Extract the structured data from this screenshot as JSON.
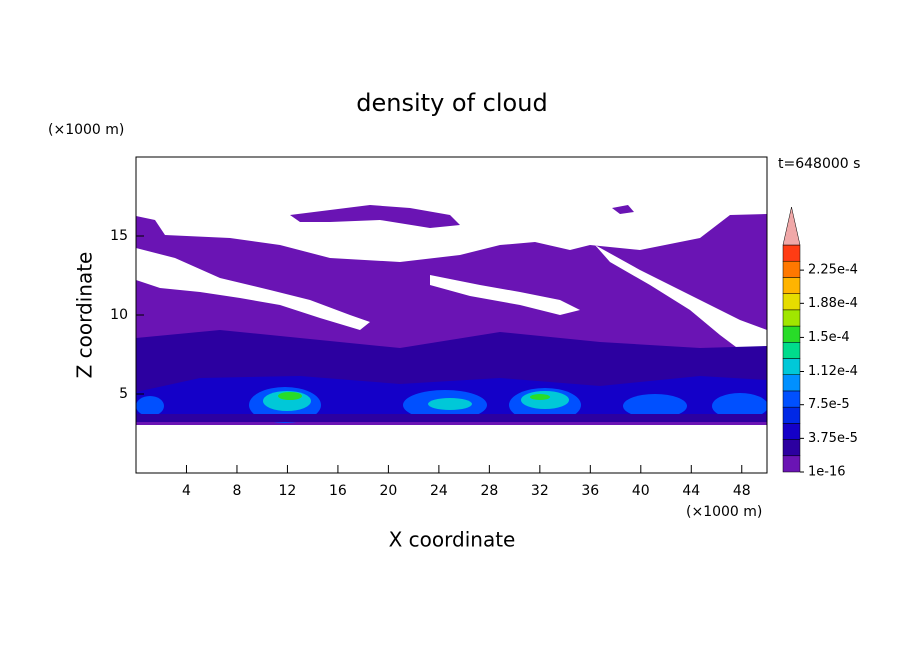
{
  "chart_data": {
    "type": "contour",
    "title": "density of cloud",
    "time_label": "t=648000 s",
    "xlabel": "X coordinate",
    "ylabel": "Z coordinate",
    "x_unit": "(×1000 m)",
    "y_unit": "(×1000 m)",
    "xlim": [
      0,
      50
    ],
    "xticks": [
      4,
      8,
      12,
      16,
      20,
      24,
      28,
      32,
      36,
      40,
      44,
      48
    ],
    "ylim": [
      0,
      20
    ],
    "yticks": [
      5,
      10,
      15
    ],
    "colorbar": {
      "clim": [
        1e-16,
        0.000253
      ],
      "colors": [
        "#6a14b4",
        "#2c00a0",
        "#1400c8",
        "#0028e6",
        "#0050ff",
        "#0090ff",
        "#00c8d8",
        "#00dc8c",
        "#28dc28",
        "#a0e600",
        "#e6dc00",
        "#ffb400",
        "#ff7800",
        "#ff3c14"
      ],
      "over_color": "#f0a8a8",
      "ticks": [
        {
          "value": 1e-16,
          "label": "1e-16"
        },
        {
          "value": 3.75e-05,
          "label": "3.75e-5"
        },
        {
          "value": 7.5e-05,
          "label": "7.5e-5"
        },
        {
          "value": 0.000112,
          "label": "1.12e-4"
        },
        {
          "value": 0.00015,
          "label": "1.5e-4"
        },
        {
          "value": 0.000188,
          "label": "1.88e-4"
        },
        {
          "value": 0.000225,
          "label": "2.25e-4"
        }
      ]
    }
  }
}
